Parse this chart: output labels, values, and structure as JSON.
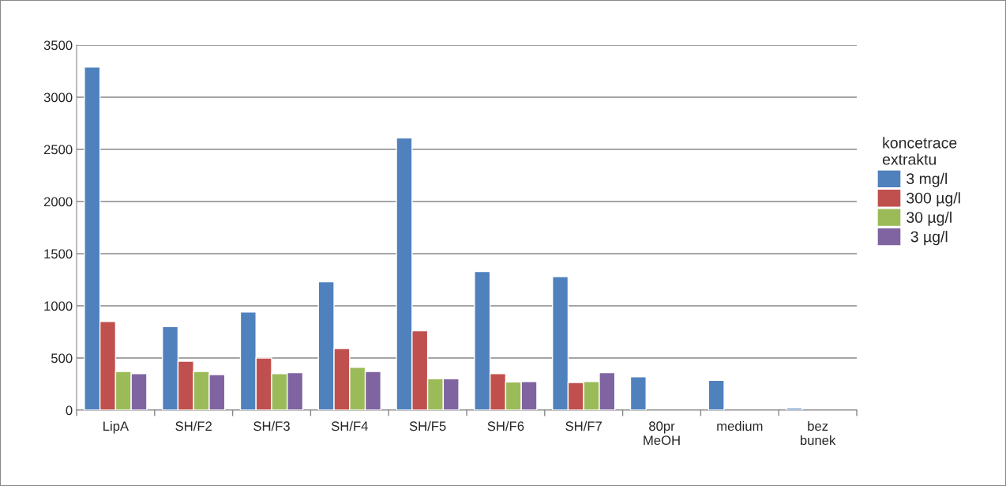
{
  "chart_data": {
    "type": "bar",
    "categories": [
      "LipA",
      "SH/F2",
      "SH/F3",
      "SH/F4",
      "SH/F5",
      "SH/F6",
      "SH/F7",
      "80pr\nMeOH",
      "medium",
      "bez\nbunek"
    ],
    "series": [
      {
        "name": "3 mg/l",
        "color": "#4f81bd",
        "values": [
          3290,
          800,
          940,
          1230,
          2610,
          1330,
          1280,
          320,
          285,
          20
        ]
      },
      {
        "name": "300 µg/l",
        "color": "#c0504d",
        "values": [
          850,
          470,
          500,
          590,
          760,
          350,
          265,
          null,
          null,
          null
        ]
      },
      {
        "name": "30 µg/l",
        "color": "#9bbb59",
        "values": [
          370,
          370,
          350,
          410,
          300,
          270,
          275,
          null,
          null,
          null
        ]
      },
      {
        "name": " 3 µg/l",
        "color": "#8064a2",
        "values": [
          350,
          340,
          360,
          370,
          300,
          275,
          360,
          null,
          null,
          null
        ]
      }
    ],
    "legend_title": "koncetrace\nextraktu",
    "ylim": [
      0,
      3500
    ],
    "yticks": [
      0,
      500,
      1000,
      1500,
      2000,
      2500,
      3000,
      3500
    ],
    "grid": "y",
    "legend": "right"
  }
}
